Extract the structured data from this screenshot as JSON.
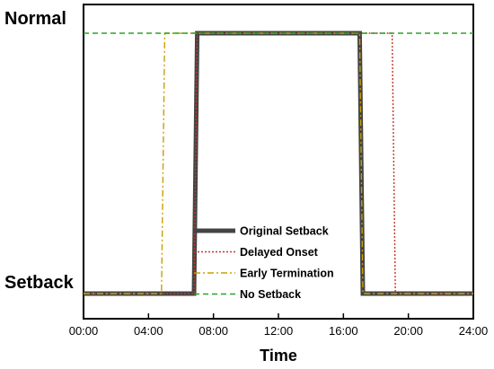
{
  "chart_data": {
    "type": "line",
    "xlabel": "Time",
    "ylabel": "",
    "xlim": [
      0,
      24
    ],
    "x_ticks": [
      0,
      4,
      8,
      12,
      16,
      20,
      24
    ],
    "x_tick_labels": [
      "00:00",
      "04:00",
      "08:00",
      "12:00",
      "16:00",
      "20:00",
      "24:00"
    ],
    "y_levels": [
      {
        "key": "normal",
        "label": "Normal",
        "value": 1
      },
      {
        "key": "setback",
        "label": "Setback",
        "value": 0
      }
    ],
    "ylim": [
      -0.1,
      1.1
    ],
    "grid": false,
    "legend_position": "center-bottom",
    "series": [
      {
        "name": "Original Setback",
        "color": "#444444",
        "style": "solid",
        "points": [
          [
            0,
            0
          ],
          [
            6.8,
            0
          ],
          [
            7,
            1
          ],
          [
            17,
            1
          ],
          [
            17.2,
            0
          ],
          [
            24,
            0
          ]
        ]
      },
      {
        "name": "Delayed Onset",
        "color": "#c0392b",
        "style": "dotted",
        "points": [
          [
            0,
            0
          ],
          [
            6.8,
            0
          ],
          [
            7,
            1
          ],
          [
            19,
            1
          ],
          [
            19.2,
            0
          ],
          [
            24,
            0
          ]
        ]
      },
      {
        "name": "Early Termination",
        "color": "#c8a000",
        "style": "dashdot",
        "points": [
          [
            0,
            0
          ],
          [
            4.8,
            0
          ],
          [
            5,
            1
          ],
          [
            17,
            1
          ],
          [
            17.2,
            0
          ],
          [
            24,
            0
          ]
        ]
      },
      {
        "name": "No Setback",
        "color": "#2ca02c",
        "style": "dashed",
        "points": [
          [
            0,
            1
          ],
          [
            24,
            1
          ]
        ]
      }
    ]
  }
}
